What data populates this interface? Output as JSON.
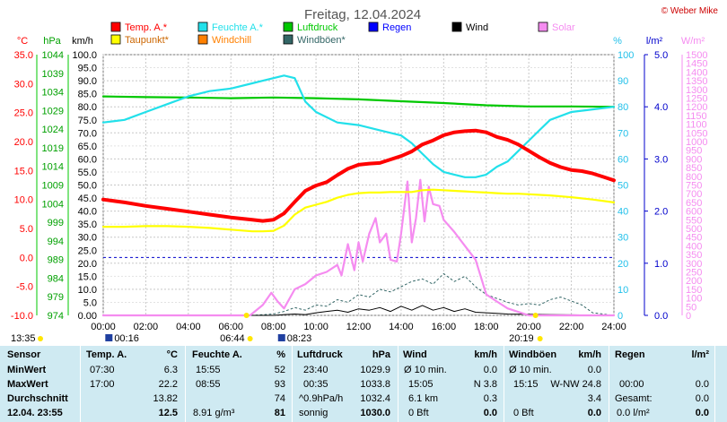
{
  "title": "Freitag, 12.04.2024",
  "credit": "© Weber Mike",
  "legend": [
    {
      "label": "Temp. A.*",
      "color": "#ff0000"
    },
    {
      "label": "Feuchte A.*",
      "color": "#22e0ea"
    },
    {
      "label": "Luftdruck",
      "color": "#00c800"
    },
    {
      "label": "Regen",
      "color": "#0000ff"
    },
    {
      "label": "Wind",
      "color": "#000000"
    },
    {
      "label": "Solar",
      "color": "#f58cf0"
    },
    {
      "label": "Taupunkt*",
      "color": "#ffff00"
    },
    {
      "label": "Windchill",
      "color": "#ff8000"
    },
    {
      "label": "Windböen*",
      "color": "#336666"
    }
  ],
  "axis_units": {
    "temp": "°C",
    "press": "hPa",
    "wind": "km/h",
    "hum": "%",
    "rain": "l/m²",
    "solar": "W/m²"
  },
  "ticks": {
    "temp": [
      "35.0",
      "30.0",
      "25.0",
      "20.0",
      "15.0",
      "10.0",
      "5.0",
      "0.0",
      "-5.0",
      "-10.0"
    ],
    "press": [
      "1044",
      "1039",
      "1034",
      "1029",
      "1024",
      "1019",
      "1014",
      "1009",
      "1004",
      "999",
      "994",
      "989",
      "984",
      "979",
      "974"
    ],
    "wind": [
      "100.0",
      "95.0",
      "90.0",
      "85.0",
      "80.0",
      "75.0",
      "70.0",
      "65.0",
      "60.0",
      "55.0",
      "50.0",
      "45.0",
      "40.0",
      "35.0",
      "30.0",
      "25.0",
      "20.0",
      "15.0",
      "10.0",
      "5.0",
      "0.00"
    ],
    "hum": [
      "100",
      "90",
      "80",
      "70",
      "60",
      "50",
      "40",
      "30",
      "20",
      "10",
      "0"
    ],
    "rain": [
      "5.0",
      "4.0",
      "3.0",
      "2.0",
      "1.0",
      "0.0"
    ],
    "solar": [
      "1500",
      "1450",
      "1400",
      "1350",
      "1300",
      "1250",
      "1200",
      "1150",
      "1100",
      "1050",
      "1000",
      "950",
      "900",
      "850",
      "800",
      "750",
      "700",
      "650",
      "600",
      "550",
      "500",
      "450",
      "400",
      "350",
      "300",
      "250",
      "200",
      "150",
      "100",
      "50",
      "0"
    ],
    "x": [
      "00:00",
      "02:00",
      "04:00",
      "06:00",
      "08:00",
      "10:00",
      "12:00",
      "14:00",
      "16:00",
      "18:00",
      "20:00",
      "22:00",
      "24:00"
    ]
  },
  "sun_markers": {
    "now": "13:35",
    "moonrise": "00:16",
    "sunrise": "06:44",
    "moonset": "08:23",
    "sunset": "20:19"
  },
  "chart_data": {
    "type": "line",
    "x_unit": "hour",
    "xlim": [
      0,
      24
    ],
    "ylim": [
      -10,
      35
    ],
    "ylabel": "°C",
    "series": [
      {
        "name": "Temp. A.*",
        "axis": "°C",
        "color": "#ff0000",
        "x": [
          0,
          1,
          2,
          3,
          4,
          5,
          6,
          7,
          7.5,
          8,
          8.5,
          9,
          9.5,
          10,
          10.5,
          11,
          11.5,
          12,
          12.5,
          13,
          13.5,
          14,
          14.5,
          15,
          15.5,
          16,
          16.5,
          17,
          17.5,
          18,
          18.5,
          19,
          19.5,
          20,
          20.5,
          21,
          21.5,
          22,
          22.5,
          23,
          23.5,
          24
        ],
        "y": [
          10.0,
          9.5,
          8.9,
          8.4,
          7.9,
          7.4,
          6.9,
          6.5,
          6.3,
          6.5,
          7.6,
          9.6,
          11.5,
          12.4,
          13.0,
          14.2,
          15.3,
          16.0,
          16.2,
          16.3,
          16.9,
          17.5,
          18.3,
          19.5,
          20.2,
          21.1,
          21.6,
          21.8,
          21.9,
          21.6,
          20.8,
          20.3,
          19.5,
          18.4,
          17.3,
          16.3,
          15.6,
          15.1,
          14.9,
          14.5,
          13.9,
          13.3
        ]
      },
      {
        "name": "Taupunkt*",
        "axis": "°C",
        "color": "#ffff00",
        "x": [
          0,
          1,
          2,
          3,
          4,
          5,
          6,
          7,
          7.5,
          8,
          8.5,
          9,
          9.5,
          10,
          10.5,
          11,
          11.5,
          12,
          12.5,
          13,
          13.5,
          14,
          14.5,
          15,
          15.5,
          16,
          16.5,
          17,
          17.5,
          18,
          18.5,
          19,
          19.5,
          20,
          21,
          22,
          23,
          24
        ],
        "y": [
          5.3,
          5.3,
          5.4,
          5.4,
          5.3,
          5.1,
          4.8,
          4.5,
          4.5,
          4.6,
          5.5,
          7.4,
          8.6,
          9.1,
          9.6,
          10.3,
          10.8,
          11.1,
          11.2,
          11.2,
          11.3,
          11.3,
          11.3,
          11.6,
          11.7,
          11.6,
          11.5,
          11.4,
          11.3,
          11.2,
          11.1,
          11.0,
          11.0,
          10.9,
          10.7,
          10.4,
          10.0,
          9.5
        ]
      },
      {
        "name": "Feuchte A.*",
        "axis": "%",
        "color": "#22e0ea",
        "x": [
          0,
          1,
          2,
          3,
          4,
          5,
          6,
          7,
          7.5,
          8,
          8.5,
          9,
          9.5,
          10,
          11,
          12,
          13,
          13.5,
          14,
          14.5,
          15,
          15.5,
          16,
          16.5,
          17,
          17.5,
          18,
          18.5,
          19,
          19.5,
          20,
          20.5,
          21,
          22,
          23,
          24
        ],
        "y": [
          74,
          75,
          78,
          81,
          84,
          86,
          87,
          89,
          90,
          91,
          92,
          91,
          82,
          78,
          74,
          73,
          71,
          70,
          69,
          66,
          62,
          58,
          55,
          54,
          53,
          53,
          54,
          57,
          59,
          63,
          67,
          71,
          75,
          78,
          79,
          80
        ]
      },
      {
        "name": "Luftdruck",
        "axis": "hPa",
        "color": "#00c800",
        "x": [
          0,
          2,
          4,
          6,
          8,
          10,
          12,
          14,
          16,
          18,
          20,
          22,
          24
        ],
        "y": [
          1032.8,
          1032.6,
          1032.5,
          1032.3,
          1032.5,
          1032.3,
          1032.0,
          1031.5,
          1031.0,
          1030.4,
          1030.1,
          1030.1,
          1030.0
        ]
      },
      {
        "name": "Wind",
        "axis": "km/h",
        "color": "#000000",
        "x": [
          0,
          6,
          7,
          8,
          8.5,
          9,
          9.5,
          10,
          10.5,
          11,
          11.5,
          12,
          12.5,
          13,
          13.5,
          14,
          14.5,
          15,
          15.5,
          16,
          16.5,
          17,
          17.5,
          18,
          18.5,
          19,
          20,
          21,
          22,
          24
        ],
        "y": [
          0,
          0,
          0,
          0,
          0.3,
          0.5,
          0.3,
          1.0,
          1.5,
          2.0,
          1.2,
          2.5,
          2.0,
          3.0,
          1.5,
          3.5,
          2.0,
          3.8,
          2.0,
          3.0,
          1.5,
          2.5,
          1.2,
          1.0,
          0.8,
          0.5,
          0.4,
          0.3,
          0.2,
          0
        ]
      },
      {
        "name": "Windböen*",
        "axis": "km/h",
        "color": "#336666",
        "x": [
          0,
          6,
          7,
          8,
          8.5,
          9,
          9.5,
          10,
          10.5,
          11,
          11.5,
          12,
          12.5,
          13,
          13.5,
          14,
          14.5,
          15,
          15.5,
          16,
          16.5,
          17,
          17.5,
          18,
          18.5,
          19,
          19.5,
          20,
          20.5,
          21,
          21.5,
          22,
          22.5,
          23,
          24
        ],
        "y": [
          0,
          0,
          0,
          0.5,
          1.5,
          3.0,
          2.0,
          4.0,
          3.5,
          6.0,
          5.0,
          8.0,
          7.0,
          10.0,
          9.0,
          11.0,
          13.0,
          14.0,
          12.0,
          16.0,
          13.0,
          15.0,
          11.0,
          8.0,
          6.5,
          5.0,
          4.0,
          4.5,
          4.0,
          6.0,
          7.0,
          5.5,
          4.0,
          1.0,
          0
        ]
      },
      {
        "name": "Solar",
        "axis": "W/m²",
        "color": "#f58cf0",
        "x": [
          0,
          6.9,
          7.5,
          7.9,
          8.2,
          8.5,
          9,
          9.5,
          10,
          10.5,
          11,
          11.2,
          11.5,
          11.8,
          12,
          12.2,
          12.5,
          12.8,
          13,
          13.3,
          13.5,
          13.8,
          14,
          14.3,
          14.5,
          14.7,
          14.9,
          15.1,
          15.3,
          15.5,
          15.8,
          16,
          16.5,
          17,
          17.5,
          18,
          18.5,
          19,
          19.5,
          20,
          24
        ],
        "y": [
          0,
          0,
          60,
          130,
          80,
          40,
          150,
          180,
          230,
          250,
          290,
          230,
          410,
          260,
          420,
          310,
          470,
          560,
          420,
          470,
          320,
          310,
          470,
          770,
          420,
          560,
          780,
          540,
          740,
          640,
          630,
          550,
          480,
          400,
          320,
          120,
          80,
          40,
          20,
          0,
          0
        ]
      }
    ]
  },
  "table": {
    "headers": [
      "Sensor",
      "Temp. A.",
      "°C",
      "Feuchte A.",
      "%",
      "Luftdruck",
      "hPa",
      "Wind",
      "km/h",
      "Windböen",
      "km/h",
      "Regen",
      "l/m²"
    ],
    "rows": [
      {
        "label": "MinWert",
        "c1": "07:30",
        "c2": "6.3",
        "c3": "15:55",
        "c4": "52",
        "c5": "23:40",
        "c6": "1029.9",
        "c7": "Ø 10 min.",
        "c8": "0.0",
        "c9": "Ø 10 min.",
        "c10": "0.0",
        "c11": "",
        "c12": ""
      },
      {
        "label": "MaxWert",
        "c1": "17:00",
        "c2": "22.2",
        "c3": "08:55",
        "c4": "93",
        "c5": "00:35",
        "c6": "1033.8",
        "c7": "15:05",
        "c8": "N 3.8",
        "c9": "15:15",
        "c10": "W-NW 24.8",
        "c11": "00:00",
        "c12": "0.0"
      },
      {
        "label": "Durchschnitt",
        "c1": "",
        "c2": "13.82",
        "c3": "",
        "c4": "74",
        "c5": "^0.9hPa/h",
        "c6": "1032.4",
        "c7": "6.1 km",
        "c8": "0.3",
        "c9": "",
        "c10": "3.4",
        "c11": "Gesamt:",
        "c12": "0.0"
      },
      {
        "label": "12.04. 23:55",
        "c1": "",
        "c2": "12.5",
        "c3": "8.91 g/m³",
        "c4": "81",
        "c5": "sonnig",
        "c6": "1030.0",
        "c7": "0 Bft",
        "c8": "0.0",
        "c9": "0 Bft",
        "c10": "0.0",
        "c11": "0.0 l/m²",
        "c12": "0.0"
      }
    ]
  }
}
